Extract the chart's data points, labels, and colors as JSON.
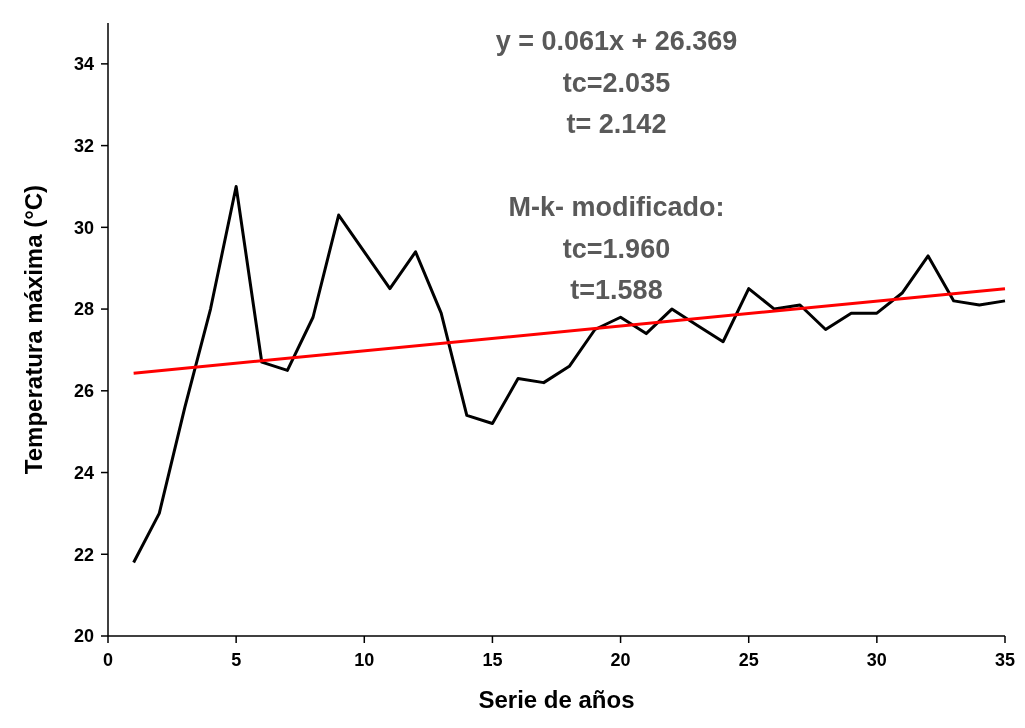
{
  "chart_data": {
    "type": "line",
    "xlabel": "Serie de años",
    "ylabel": "Temperatura máxima (°C)",
    "xlim": [
      0,
      35
    ],
    "xticks": [
      0,
      5,
      10,
      15,
      20,
      25,
      30,
      35
    ],
    "ylim": [
      20,
      35
    ],
    "yticks": [
      20,
      22,
      24,
      26,
      28,
      30,
      32,
      34
    ],
    "grid": false,
    "marker": "none",
    "line_style": "solid",
    "series": [
      {
        "color": "#000000",
        "x": [
          1,
          2,
          3,
          4,
          5,
          6,
          7,
          8,
          9,
          10,
          11,
          12,
          13,
          14,
          15,
          16,
          17,
          18,
          19,
          20,
          21,
          22,
          23,
          24,
          25,
          26,
          27,
          28,
          29,
          30,
          31,
          32,
          33,
          34,
          35
        ],
        "values": [
          21.8,
          23.0,
          25.6,
          28.0,
          31.0,
          26.7,
          26.5,
          27.8,
          30.3,
          29.4,
          28.5,
          29.4,
          27.9,
          25.4,
          25.2,
          26.3,
          26.2,
          26.6,
          27.5,
          27.8,
          27.4,
          28.0,
          27.6,
          27.2,
          28.5,
          28.0,
          28.1,
          27.5,
          27.9,
          27.9,
          28.4,
          29.3,
          28.2,
          28.1,
          28.2
        ]
      },
      {
        "type": "line",
        "color": "#ff0000",
        "x": [
          1,
          35
        ],
        "values": [
          26.43,
          28.5
        ]
      }
    ],
    "annotations": [
      "y = 0.061x + 26.369\ntc=2.035\nt= 2.142",
      "M-k- modificado:\ntc=1.960\nt=1.588"
    ]
  }
}
